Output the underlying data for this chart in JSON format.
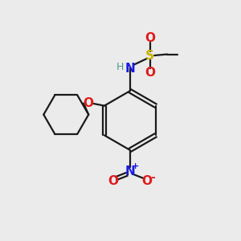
{
  "background_color": "#ebebeb",
  "bond_color": "#1a1a1a",
  "colors": {
    "C": "#1a1a1a",
    "H": "#4a9a8a",
    "N": "#1a1ae0",
    "O": "#e01a1a",
    "S": "#c8b400",
    "plus": "#1a1ae0",
    "minus": "#e01a1a"
  },
  "figsize": [
    3.0,
    3.0
  ],
  "dpi": 100
}
